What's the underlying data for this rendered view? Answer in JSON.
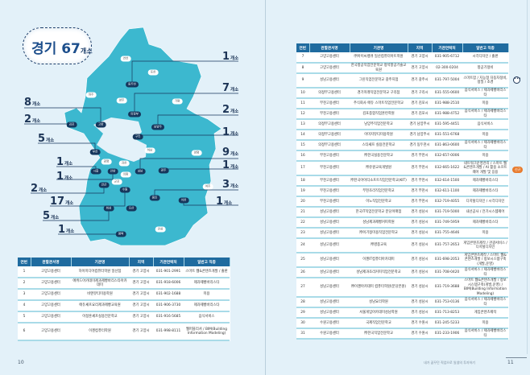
{
  "map": {
    "bubble": {
      "region": "경기",
      "count": "67",
      "unit": "개소"
    },
    "fill_color": "#3cb8cf",
    "regions": [
      {
        "name": "연천",
        "dark": false
      },
      {
        "name": "포천",
        "dark": false
      },
      {
        "name": "동두천",
        "dark": true
      },
      {
        "name": "파주",
        "dark": false
      },
      {
        "name": "양주",
        "dark": false
      },
      {
        "name": "가평",
        "dark": false
      },
      {
        "name": "의정부",
        "dark": true
      },
      {
        "name": "김포",
        "dark": true
      },
      {
        "name": "고양",
        "dark": true
      },
      {
        "name": "남양주",
        "dark": true
      },
      {
        "name": "구리",
        "dark": true
      },
      {
        "name": "부천",
        "dark": true
      },
      {
        "name": "하남",
        "dark": false
      },
      {
        "name": "양평",
        "dark": false
      },
      {
        "name": "광명",
        "dark": false
      },
      {
        "name": "과천",
        "dark": false
      },
      {
        "name": "시흥",
        "dark": true
      },
      {
        "name": "안양",
        "dark": true
      },
      {
        "name": "의왕",
        "dark": false
      },
      {
        "name": "성남",
        "dark": true
      },
      {
        "name": "광주",
        "dark": true
      },
      {
        "name": "군포",
        "dark": false
      },
      {
        "name": "안산",
        "dark": true
      },
      {
        "name": "수원",
        "dark": true
      },
      {
        "name": "여주",
        "dark": false
      },
      {
        "name": "용인",
        "dark": true
      },
      {
        "name": "이천",
        "dark": true
      },
      {
        "name": "화성",
        "dark": true
      },
      {
        "name": "오산",
        "dark": true
      },
      {
        "name": "평택",
        "dark": true
      },
      {
        "name": "안성",
        "dark": false
      }
    ],
    "counts": [
      {
        "region": "동두천",
        "value": "1",
        "unit": "개소"
      },
      {
        "region": "의정부",
        "value": "7",
        "unit": "개소"
      },
      {
        "region": "남양주",
        "value": "2",
        "unit": "개소"
      },
      {
        "region": "구리",
        "value": "1",
        "unit": "개소"
      },
      {
        "region": "성남",
        "value": "9",
        "unit": "개소"
      },
      {
        "region": "광주",
        "value": "1",
        "unit": "개소"
      },
      {
        "region": "용인",
        "value": "3",
        "unit": "개소"
      },
      {
        "region": "이천",
        "value": "1",
        "unit": "개소"
      },
      {
        "region": "고양",
        "value": "8",
        "unit": "개소"
      },
      {
        "region": "김포",
        "value": "2",
        "unit": "개소"
      },
      {
        "region": "부천",
        "value": "5",
        "unit": "개소"
      },
      {
        "region": "시흥",
        "value": "1",
        "unit": "개소"
      },
      {
        "region": "안양",
        "value": "1",
        "unit": "개소"
      },
      {
        "region": "안산",
        "value": "2",
        "unit": "개소"
      },
      {
        "region": "수원",
        "value": "17",
        "unit": "개소"
      },
      {
        "region": "화성",
        "value": "5",
        "unit": "개소"
      },
      {
        "region": "평택",
        "value": "1",
        "unit": "개소"
      }
    ]
  },
  "table": {
    "headers": [
      "연번",
      "관할관서명",
      "기관명",
      "지역",
      "기관연락처",
      "일반고 직종"
    ],
    "left_rows": [
      [
        "1",
        "고양고용센터",
        "하이미디어컴퓨터학원 일산점",
        "경기 고양시",
        "031-901-2991",
        "스마트 웹&콘텐츠개발 / 출판"
      ],
      [
        "2",
        "고양고용센터",
        "에뛰드아카데미제과제빵바리스타아카데미",
        "경기 고양시",
        "031-918-6006",
        "제과제빵바리스타"
      ],
      [
        "3",
        "고양고용센터",
        "비엔뷰티미용학원",
        "경기 고양시",
        "031-902-1688",
        "미용"
      ],
      [
        "4",
        "고양고용센터",
        "에듀셰프요리제과제빵교육원",
        "경기 고양시",
        "031-906-3730",
        "제과제빵바리스타"
      ],
      [
        "5",
        "고양고용센터",
        "이정훈셰프실용전문학교",
        "경기 고양시",
        "031-916-5685",
        "음식서비스"
      ],
      [
        "6",
        "고양고용센터",
        "이젠컴퓨터학원",
        "경기 고양시",
        "031-998-8111",
        "웹퍼블리셔 / BIM(Building Information Modeling)"
      ]
    ],
    "right_rows": [
      [
        "7",
        "고양고용센터",
        "㈜아이씨뱅큐 일산컴퓨터아트학원",
        "경기 고양시",
        "031-905-6712",
        "시각디자인 / 출판"
      ],
      [
        "8",
        "고양고용센터",
        "한국항공직업전문학교 정석항공기술교육원",
        "경기 고양시",
        "02-300-0204",
        "항공기정비"
      ],
      [
        "9",
        "성남고용센터",
        "그린직업전문학교 광주지점",
        "경기 광주시",
        "031-797-5004",
        "스마트팜 / 지능형 자동차정비, 정밀 / 조경"
      ],
      [
        "10",
        "의정부고용센터",
        "경기미래직업전문학교 구리점",
        "경기 구리시",
        "031-555-0600",
        "음식서비스 / 제과제빵바리스타"
      ],
      [
        "11",
        "부천고용센터",
        "주식회사 에듀 스마트직업전문학교",
        "경기 김포시",
        "031-988-2510",
        "미용"
      ],
      [
        "12",
        "부천고용센터",
        "김포종합직업훈련학원",
        "경기 김포시",
        "031-988-4752",
        "음식서비스 / 제과제빵바리스타"
      ],
      [
        "13",
        "의정부고용센터",
        "남양주직업전문학교",
        "경기 남양주시",
        "031-595-4451",
        "음식서비스"
      ],
      [
        "14",
        "의정부고용센터",
        "이미지뷰티미용학원",
        "경기 남양주시",
        "031-551-6768",
        "미용"
      ],
      [
        "15",
        "의정부고용센터",
        "스타셰프 실용전문학교",
        "경기 동두천시",
        "031-863-0600",
        "음식서비스 / 제과제빵바리스타"
      ],
      [
        "16",
        "부천고용센터",
        "㈜한국실용전문학교",
        "경기 부천시",
        "032-657-0006",
        "미용"
      ],
      [
        "17",
        "부천고용센터",
        "㈜유원교육개발원",
        "경기 부천시",
        "032-665-1622",
        "네트워크운영관리 / 스마트 웹&콘텐츠개발 / AI 활용 소프트웨어 개발 및 응용"
      ],
      [
        "18",
        "부천고용센터",
        "㈜한국아이티소프트직업전문학교(KIT)",
        "경기 부천시",
        "032-614-1500",
        "제과제빵바리스타"
      ],
      [
        "19",
        "부천고용센터",
        "부천조리직업전문학교",
        "경기 부천시",
        "032-611-1100",
        "제과제빵바리스타"
      ],
      [
        "20",
        "부천고용센터",
        "이노직업전문학교",
        "경기 부천시",
        "032-719-4055",
        "디지털디자인 / 시각디자인"
      ],
      [
        "21",
        "성남고용센터",
        "한국IT직업전문학교 분당이매점",
        "경기 성남시",
        "031-719-5000",
        "내선공사 / 전기시스템제어"
      ],
      [
        "22",
        "성남고용센터",
        "성남제과제빵커피학원",
        "경기 성남시",
        "031-749-5959",
        "제과제빵바리스타"
      ],
      [
        "23",
        "성남고용센터",
        "㈜이기정미용직업전문학교",
        "경기 성남시",
        "031-755-4646",
        "미용"
      ],
      [
        "24",
        "성남고용센터",
        "㈜영종교육",
        "경기 성남시",
        "031-757-2653",
        "게임콘텐츠제작 / 관광서비스 / 디지털디자인"
      ],
      [
        "25",
        "성남고용센터",
        "이젠IT컴퓨터아카데미",
        "경기 성남시",
        "031-698-2053",
        "게임콘텐츠제작 / 스마트 웹&콘텐츠개발 / 정보시스템구축(개발,운영)"
      ],
      [
        "26",
        "성남고용센터",
        "성남제과조리커피직업전문학교",
        "경기 성남시",
        "031-708-0420",
        "음식서비스 / 제과제빵바리스타"
      ],
      [
        "27",
        "성남고용센터",
        "㈜이젠아카데미 컴퓨터학원(분당본원)",
        "경기 성남시",
        "031-719-3688",
        "스마트 웹&콘텐츠개발 / 정보시스템구축(개발,운영) / BIM(Building Information Modeling)"
      ],
      [
        "28",
        "성남고용센터",
        "성남요리학원",
        "경기 성남시",
        "031-753-0136",
        "음식서비스 / 제과제빵바리스타"
      ],
      [
        "29",
        "성남고용센터",
        "서울게임아카데미성남학원",
        "경기 성남시",
        "031-713-8253",
        "게임콘텐츠제작"
      ],
      [
        "30",
        "수원고용센터",
        "국제직업전문학교",
        "경기 수원시",
        "031-245-5233",
        "미용"
      ],
      [
        "31",
        "수원고용센터",
        "㈜한국직업전문학교",
        "경기 수원시",
        "031-233-1906",
        "음식서비스 / 제과제빵바리스타"
      ]
    ],
    "new_badge": {
      "row": "17",
      "label": "신규"
    },
    "header_color": "#1f6b9f"
  },
  "footer": {
    "left_page": "10",
    "right_title": "내가 꿈꾸던 직업으로 일생의 투자하기",
    "right_page": "11"
  }
}
